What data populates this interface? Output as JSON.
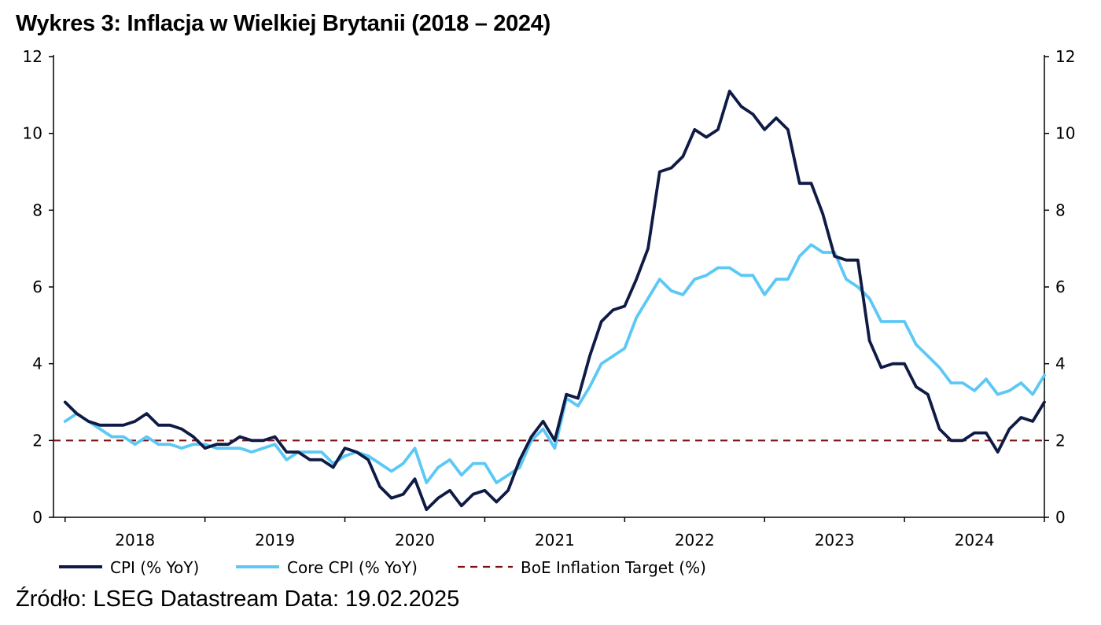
{
  "title": "Wykres 3: Inflacja w Wielkiej Brytanii (2018 – 2024)",
  "source": "Źródło: LSEG Datastream Data: 19.02.2025",
  "chart_data": {
    "type": "line",
    "ylim": [
      0,
      12
    ],
    "yticks": [
      "0",
      "2",
      "4",
      "6",
      "8",
      "10",
      "12"
    ],
    "xlim": [
      2017.917,
      2025.0
    ],
    "x_ticks": [
      "2018",
      "2019",
      "2020",
      "2021",
      "2022",
      "2023",
      "2024"
    ],
    "grid": false,
    "legend_position": "bottom",
    "x_start": "2018-01",
    "x_step": "month",
    "series": [
      {
        "name": "CPI (% YoY)",
        "color": "#0f1a45",
        "style": "solid",
        "values": [
          3.0,
          2.7,
          2.5,
          2.4,
          2.4,
          2.4,
          2.5,
          2.7,
          2.4,
          2.4,
          2.3,
          2.1,
          1.8,
          1.9,
          1.9,
          2.1,
          2.0,
          2.0,
          2.1,
          1.7,
          1.7,
          1.5,
          1.5,
          1.3,
          1.8,
          1.7,
          1.5,
          0.8,
          0.5,
          0.6,
          1.0,
          0.2,
          0.5,
          0.7,
          0.3,
          0.6,
          0.7,
          0.4,
          0.7,
          1.5,
          2.1,
          2.5,
          2.0,
          3.2,
          3.1,
          4.2,
          5.1,
          5.4,
          5.5,
          6.2,
          7.0,
          9.0,
          9.1,
          9.4,
          10.1,
          9.9,
          10.1,
          11.1,
          10.7,
          10.5,
          10.1,
          10.4,
          10.1,
          8.7,
          8.7,
          7.9,
          6.8,
          6.7,
          6.7,
          4.6,
          3.9,
          4.0,
          4.0,
          3.4,
          3.2,
          2.3,
          2.0,
          2.0,
          2.2,
          2.2,
          1.7,
          2.3,
          2.6,
          2.5,
          3.0
        ]
      },
      {
        "name": "Core CPI (% YoY)",
        "color": "#5bc8f5",
        "style": "solid",
        "values": [
          2.5,
          2.7,
          2.5,
          2.3,
          2.1,
          2.1,
          1.9,
          2.1,
          1.9,
          1.9,
          1.8,
          1.9,
          1.9,
          1.8,
          1.8,
          1.8,
          1.7,
          1.8,
          1.9,
          1.5,
          1.7,
          1.7,
          1.7,
          1.4,
          1.6,
          1.7,
          1.6,
          1.4,
          1.2,
          1.4,
          1.8,
          0.9,
          1.3,
          1.5,
          1.1,
          1.4,
          1.4,
          0.9,
          1.1,
          1.3,
          2.0,
          2.3,
          1.8,
          3.1,
          2.9,
          3.4,
          4.0,
          4.2,
          4.4,
          5.2,
          5.7,
          6.2,
          5.9,
          5.8,
          6.2,
          6.3,
          6.5,
          6.5,
          6.3,
          6.3,
          5.8,
          6.2,
          6.2,
          6.8,
          7.1,
          6.9,
          6.9,
          6.2,
          6.0,
          5.7,
          5.1,
          5.1,
          5.1,
          4.5,
          4.2,
          3.9,
          3.5,
          3.5,
          3.3,
          3.6,
          3.2,
          3.3,
          3.5,
          3.2,
          3.7
        ]
      },
      {
        "name": "BoE Inflation Target (%)",
        "color": "#7a1010",
        "style": "dashed",
        "constant": 2
      }
    ]
  }
}
